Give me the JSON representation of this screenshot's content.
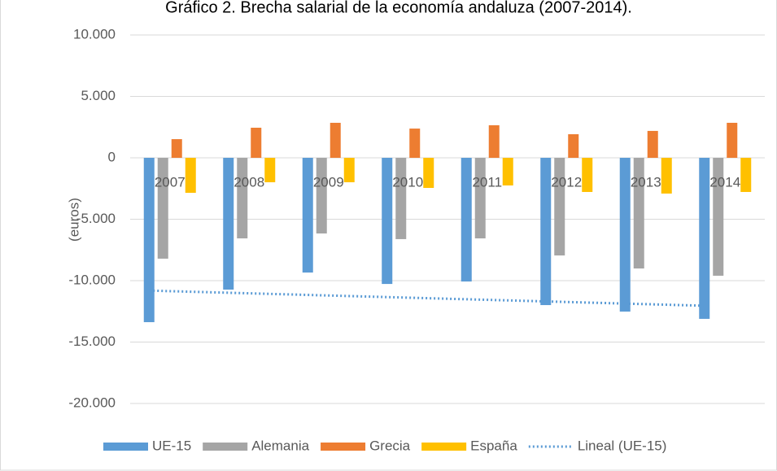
{
  "chart_data": {
    "type": "bar",
    "title": "Gráfico 2. Brecha salarial de la economía andaluza (2007-2014).",
    "y_label": "(euros)",
    "categories": [
      "2007",
      "2008",
      "2009",
      "2010",
      "2011",
      "2012",
      "2013",
      "2014"
    ],
    "series": [
      {
        "name": "UE-15",
        "color": "#5b9bd5",
        "values": [
          -13380,
          -10730,
          -9340,
          -10270,
          -10070,
          -11990,
          -12520,
          -13110
        ]
      },
      {
        "name": "Alemania",
        "color": "#a5a5a5",
        "values": [
          -8210,
          -6560,
          -6160,
          -6620,
          -6560,
          -7950,
          -9010,
          -9600
        ]
      },
      {
        "name": "Grecia",
        "color": "#ed7d31",
        "values": [
          1520,
          2450,
          2850,
          2380,
          2650,
          1920,
          2190,
          2850
        ]
      },
      {
        "name": "España",
        "color": "#ffc000",
        "values": [
          -2850,
          -1990,
          -1990,
          -2450,
          -2250,
          -2780,
          -2910,
          -2780
        ]
      }
    ],
    "trendline": {
      "name": "Lineal (UE-15)",
      "color": "#5b9bd5",
      "of_series": 0
    },
    "ylim": [
      -20000,
      10000
    ],
    "yticks": [
      {
        "value": -20000,
        "label": "-20.000"
      },
      {
        "value": -15000,
        "label": "-15.000"
      },
      {
        "value": -10000,
        "label": "-10.000"
      },
      {
        "value": -5000,
        "label": "-5.000"
      },
      0,
      {
        "value": 5000,
        "label": "5.000"
      },
      {
        "value": 10000,
        "label": "10.000"
      }
    ],
    "grid": true,
    "legend": "bottom"
  }
}
